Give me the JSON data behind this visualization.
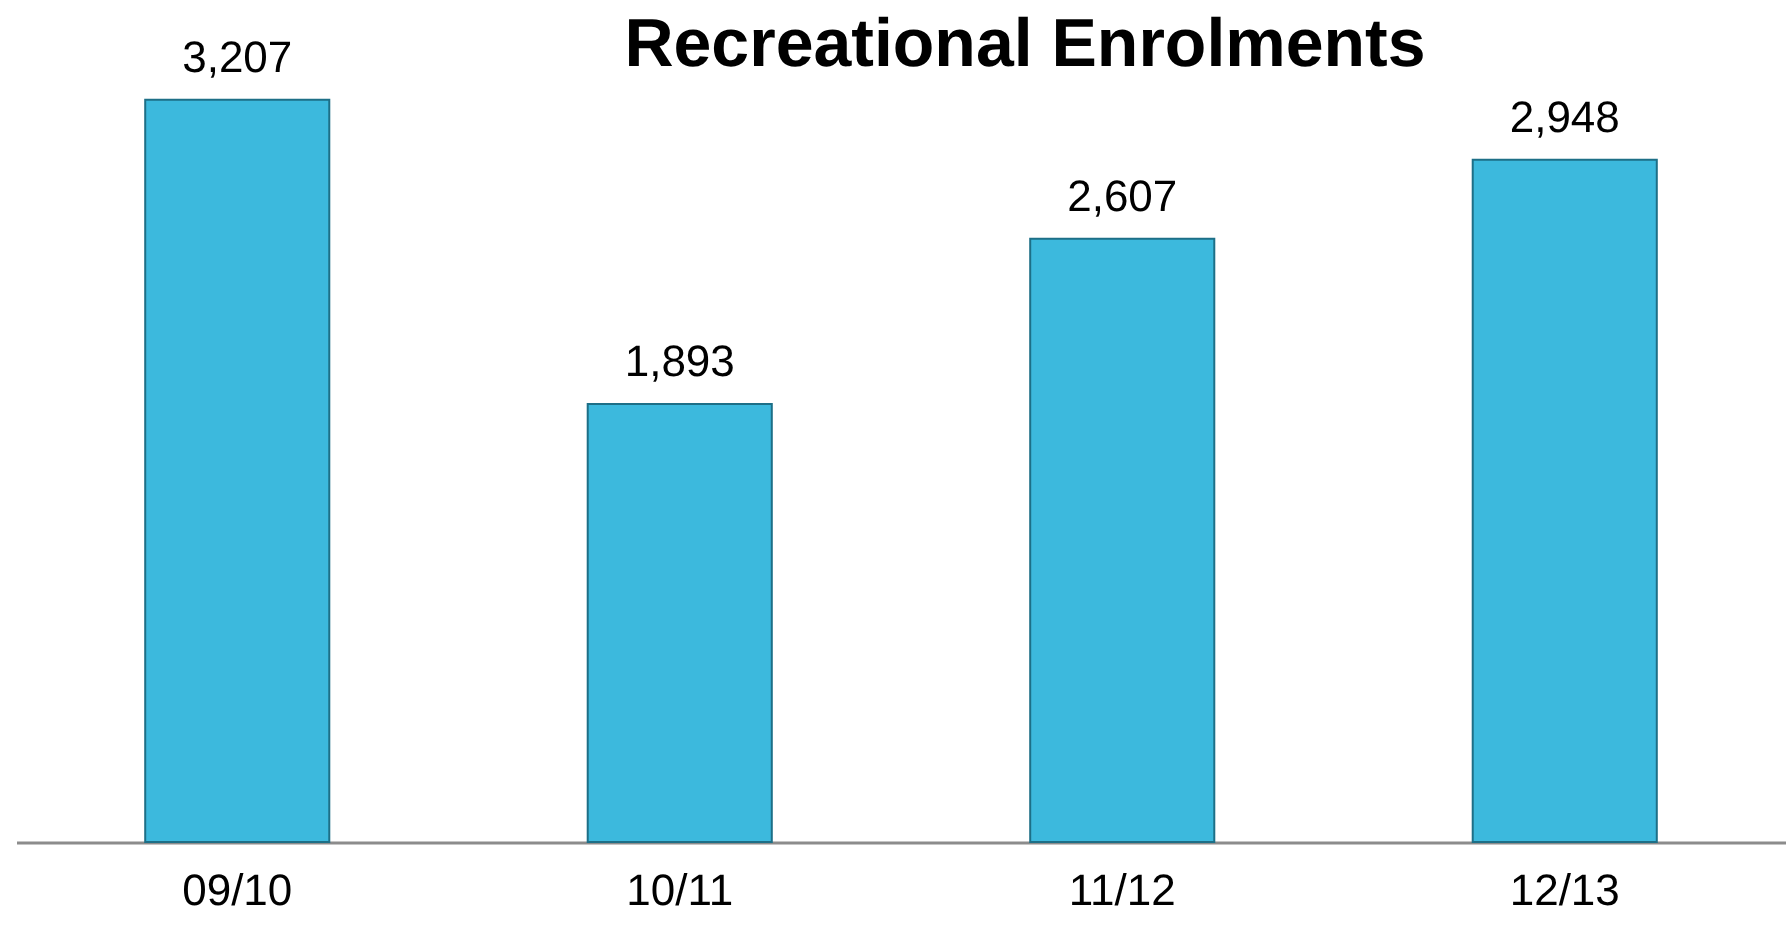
{
  "chart_data": {
    "type": "bar",
    "title": "Recreational Enrolments",
    "categories": [
      "09/10",
      "10/11",
      "11/12",
      "12/13"
    ],
    "values": [
      3207,
      1893,
      2607,
      2948
    ],
    "color": "#3cb9dd",
    "value_labels": [
      "3,207",
      "1,893",
      "2,607",
      "2,948"
    ],
    "tick_labels": "x"
  }
}
